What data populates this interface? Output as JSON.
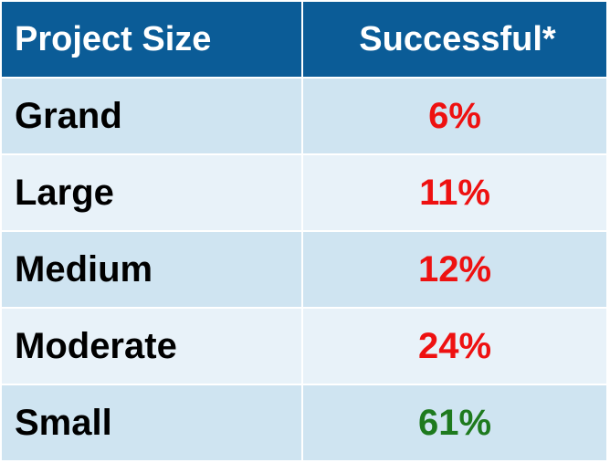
{
  "colors": {
    "header_bg": "#0b5c97",
    "row_odd_bg": "#cfe4f1",
    "row_even_bg": "#e8f2f9",
    "value_red": "#ee1111",
    "value_green": "#1e7a1e"
  },
  "chart_data": {
    "type": "table",
    "columns": [
      "Project Size",
      "Successful*"
    ],
    "rows": [
      {
        "size": "Grand",
        "success": "6%",
        "value": 6,
        "color": "#ee1111"
      },
      {
        "size": "Large",
        "success": "11%",
        "value": 11,
        "color": "#ee1111"
      },
      {
        "size": "Medium",
        "success": "12%",
        "value": 12,
        "color": "#ee1111"
      },
      {
        "size": "Moderate",
        "success": "24%",
        "value": 24,
        "color": "#ee1111"
      },
      {
        "size": "Small",
        "success": "61%",
        "value": 61,
        "color": "#1e7a1e"
      }
    ]
  }
}
